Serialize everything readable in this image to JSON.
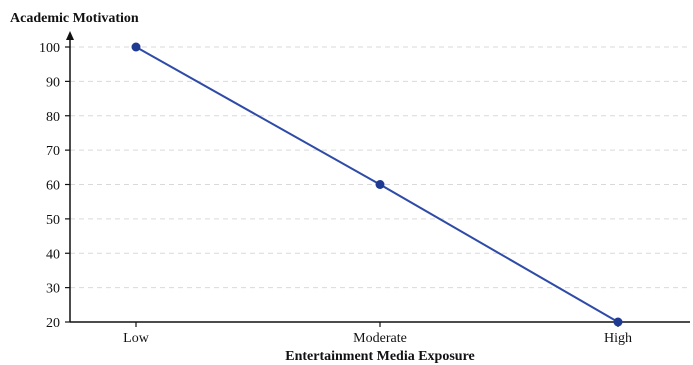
{
  "chart_data": {
    "type": "line",
    "title": "",
    "xlabel": "Entertainment Media Exposure",
    "ylabel": "Academic Motivation",
    "categories": [
      "Low",
      "Moderate",
      "High"
    ],
    "values": [
      100,
      60,
      20
    ],
    "ylim": [
      20,
      100
    ],
    "yticks": [
      "20",
      "30",
      "40",
      "50",
      "60",
      "70",
      "80",
      "90",
      "100"
    ],
    "grid": true,
    "legend": "none"
  },
  "colors": {
    "line": "#2e4ba8",
    "marker": "#1f3a93",
    "grid": "#d9d9d9",
    "axis": "#111111"
  }
}
